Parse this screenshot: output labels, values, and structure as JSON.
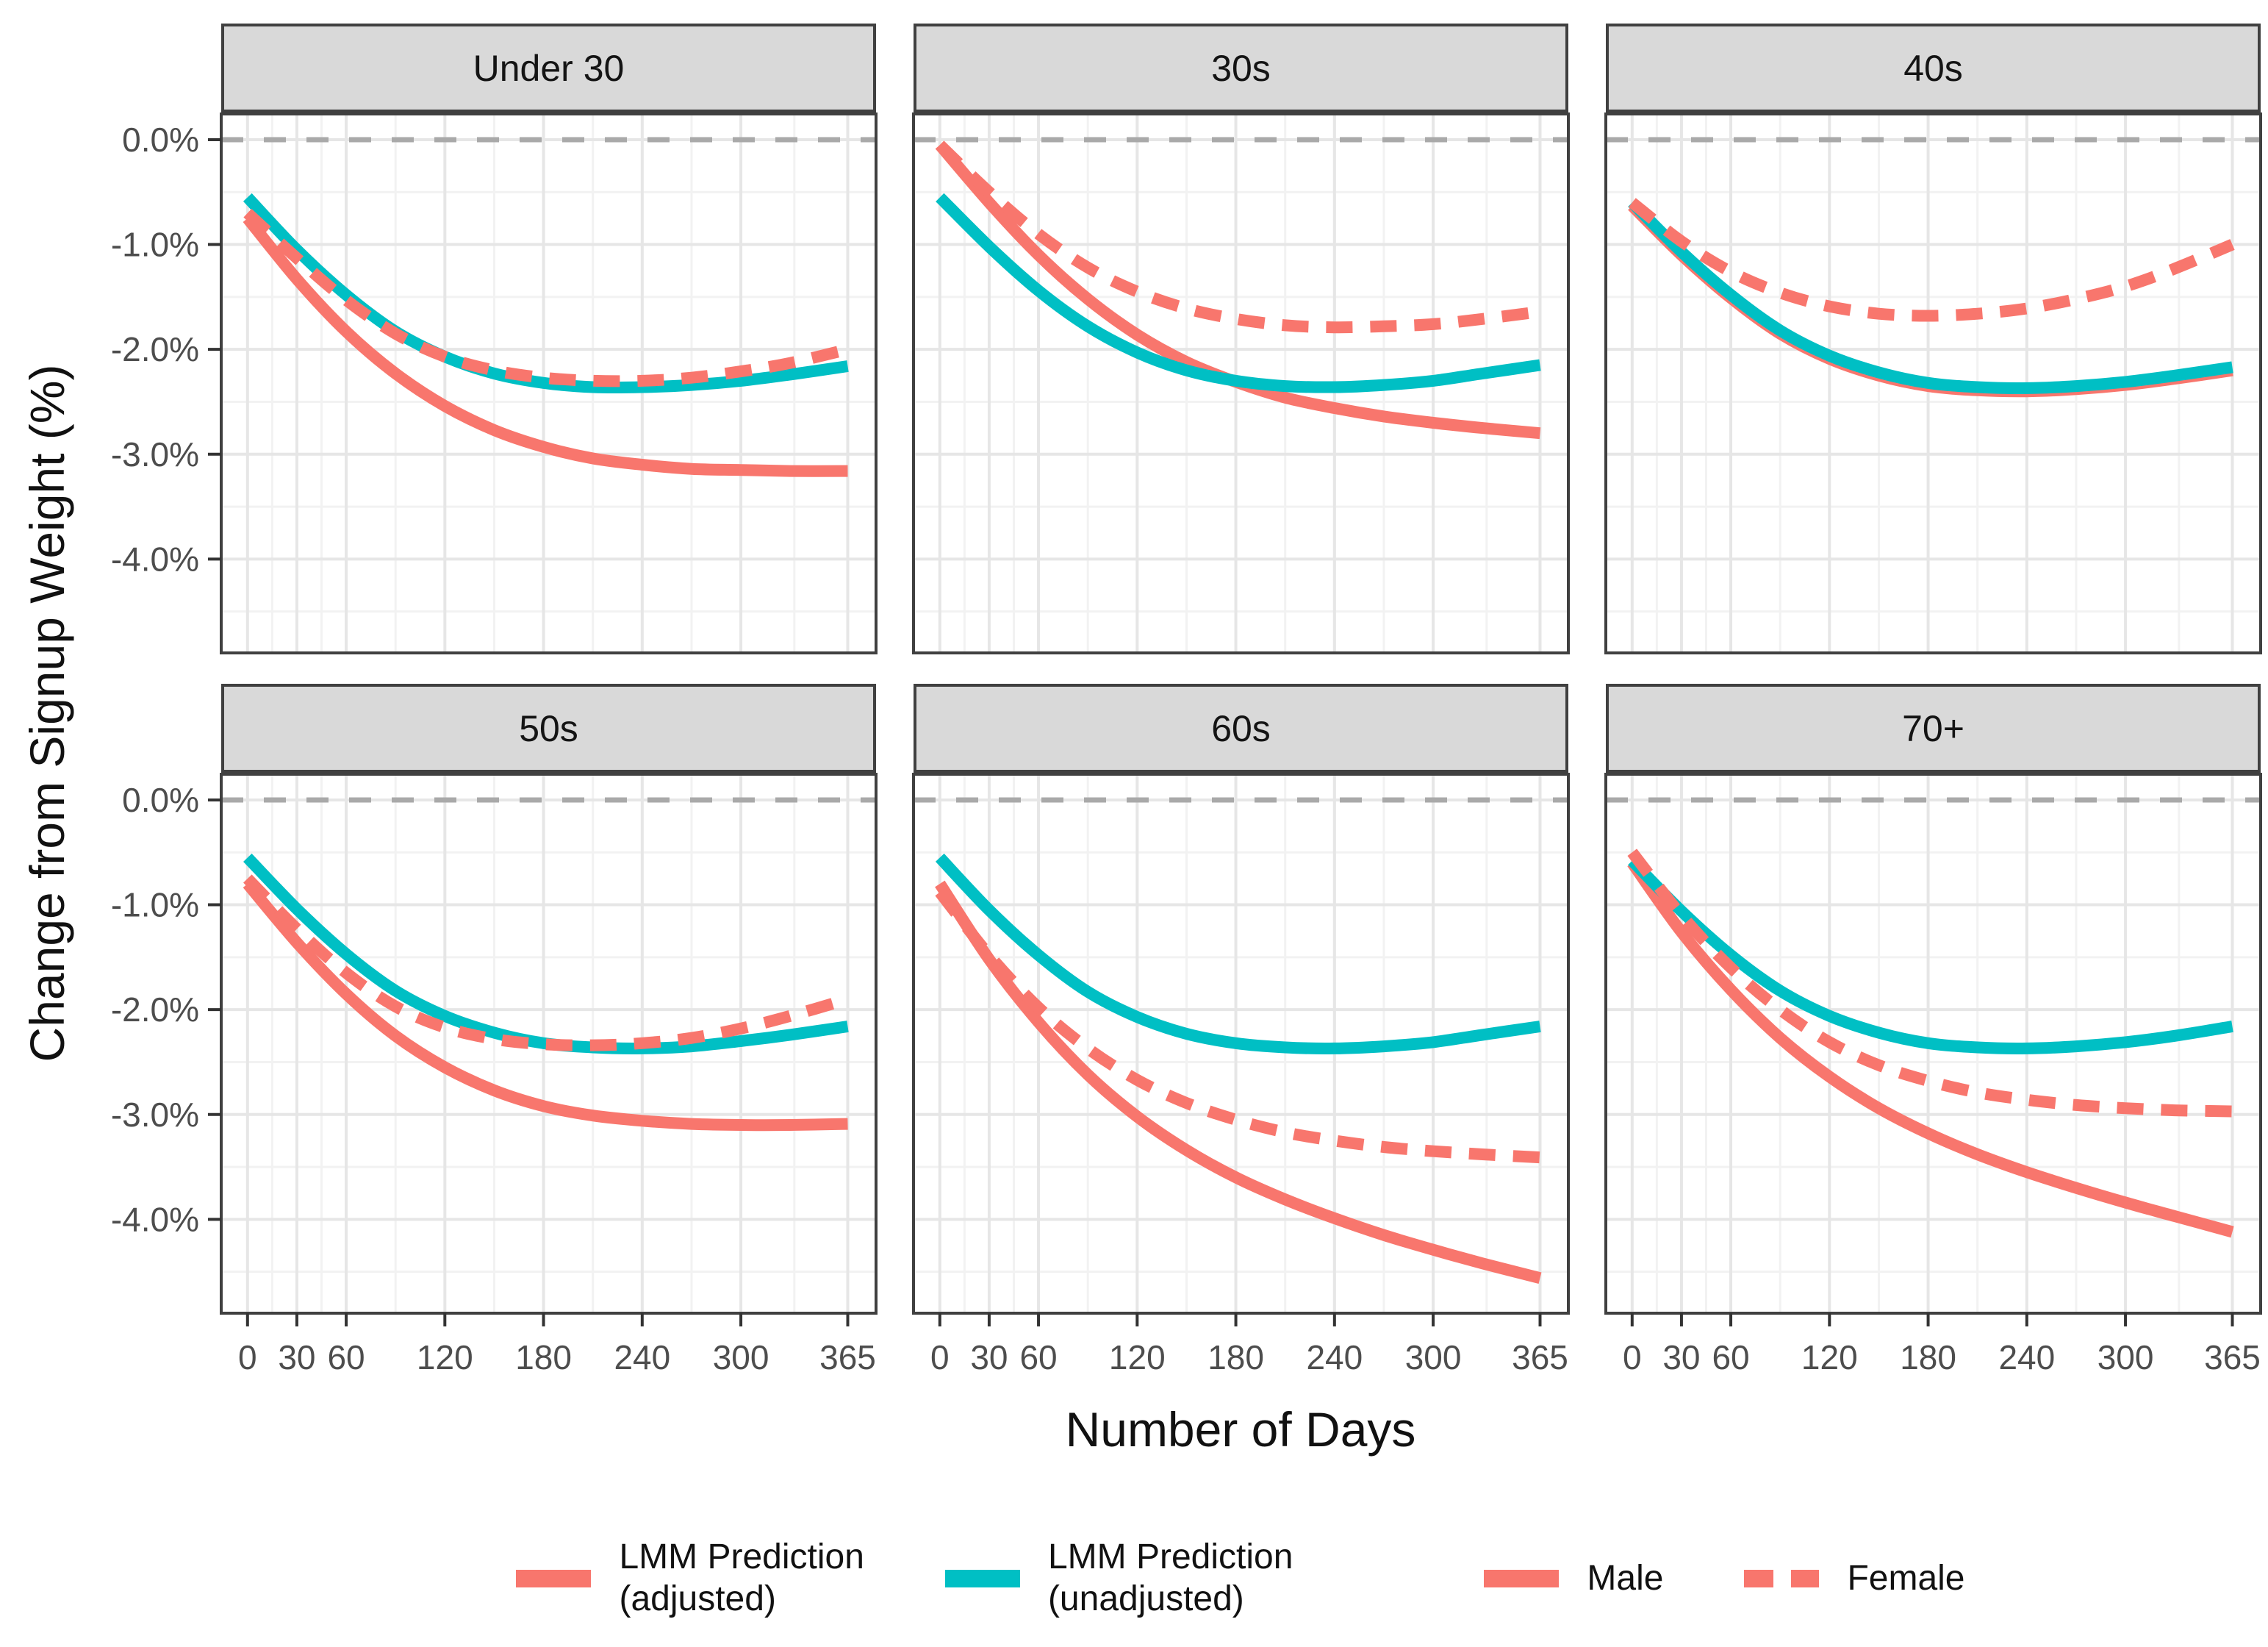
{
  "chart_data": {
    "type": "line",
    "xlabel": "Number of Days",
    "ylabel": "Change from Signup Weight (%)",
    "x_ticks": [
      0,
      30,
      60,
      120,
      180,
      240,
      300,
      365
    ],
    "x_tick_labels": [
      "0",
      "30",
      "60",
      "120",
      "180",
      "240",
      "300",
      "365"
    ],
    "y_ticks": [
      {
        "label": "0.0%",
        "value": 0
      },
      {
        "label": "-1.0%",
        "value": -1
      },
      {
        "label": "-2.0%",
        "value": -2
      },
      {
        "label": "-3.0%",
        "value": -3
      },
      {
        "label": "-4.0%",
        "value": -4
      }
    ],
    "x_minor": [
      15,
      45,
      90,
      150,
      210,
      270,
      332.5
    ],
    "y_minor": [
      -0.5,
      -1.5,
      -2.5,
      -3.5,
      -4.5
    ],
    "xlim": [
      -16,
      382.2
    ],
    "ylim": [
      0.245,
      -4.895
    ],
    "zero_line": {
      "value": 0,
      "style": "dashed",
      "color": "#A9A9A9"
    },
    "x": [
      0,
      30,
      60,
      90,
      120,
      150,
      180,
      210,
      240,
      270,
      300,
      330,
      365
    ],
    "series_meta": [
      {
        "key": "male",
        "name": "Male",
        "color": "#F8766D",
        "dash": false
      },
      {
        "key": "unadjusted",
        "name": "LMM Prediction (unadjusted)",
        "color": "#00BFC4",
        "dash": false
      },
      {
        "key": "female",
        "name": "Female",
        "color": "#F8766D",
        "dash": true
      }
    ],
    "facets": [
      {
        "label": "Under 30",
        "male": [
          -0.75,
          -1.33,
          -1.83,
          -2.23,
          -2.54,
          -2.77,
          -2.93,
          -3.04,
          -3.1,
          -3.14,
          -3.15,
          -3.16,
          -3.16
        ],
        "unadjusted": [
          -0.55,
          -1.05,
          -1.48,
          -1.83,
          -2.07,
          -2.23,
          -2.32,
          -2.36,
          -2.36,
          -2.34,
          -2.3,
          -2.24,
          -2.16
        ],
        "female": [
          -0.7,
          -1.13,
          -1.53,
          -1.85,
          -2.07,
          -2.2,
          -2.27,
          -2.3,
          -2.3,
          -2.27,
          -2.21,
          -2.13,
          -2.0
        ]
      },
      {
        "label": "30s",
        "male": [
          -0.05,
          -0.6,
          -1.1,
          -1.52,
          -1.86,
          -2.12,
          -2.31,
          -2.46,
          -2.56,
          -2.64,
          -2.7,
          -2.75,
          -2.8
        ],
        "unadjusted": [
          -0.55,
          -1.02,
          -1.44,
          -1.78,
          -2.03,
          -2.2,
          -2.3,
          -2.35,
          -2.36,
          -2.34,
          -2.3,
          -2.23,
          -2.15
        ],
        "female": [
          -0.05,
          -0.5,
          -0.9,
          -1.22,
          -1.45,
          -1.61,
          -1.71,
          -1.77,
          -1.79,
          -1.78,
          -1.76,
          -1.71,
          -1.64
        ]
      },
      {
        "label": "40s",
        "male": [
          -0.63,
          -1.1,
          -1.51,
          -1.85,
          -2.09,
          -2.25,
          -2.35,
          -2.39,
          -2.4,
          -2.38,
          -2.34,
          -2.28,
          -2.2
        ],
        "unadjusted": [
          -0.6,
          -1.07,
          -1.48,
          -1.82,
          -2.06,
          -2.22,
          -2.32,
          -2.36,
          -2.37,
          -2.35,
          -2.31,
          -2.25,
          -2.17
        ],
        "female": [
          -0.6,
          -0.97,
          -1.26,
          -1.46,
          -1.59,
          -1.66,
          -1.68,
          -1.66,
          -1.61,
          -1.52,
          -1.4,
          -1.23,
          -1.0
        ]
      },
      {
        "label": "50s",
        "male": [
          -0.8,
          -1.36,
          -1.85,
          -2.25,
          -2.55,
          -2.77,
          -2.92,
          -3.01,
          -3.06,
          -3.09,
          -3.1,
          -3.1,
          -3.09
        ],
        "unadjusted": [
          -0.55,
          -1.04,
          -1.47,
          -1.82,
          -2.06,
          -2.22,
          -2.32,
          -2.36,
          -2.37,
          -2.35,
          -2.3,
          -2.24,
          -2.16
        ],
        "female": [
          -0.75,
          -1.23,
          -1.65,
          -1.97,
          -2.17,
          -2.28,
          -2.33,
          -2.34,
          -2.32,
          -2.27,
          -2.18,
          -2.06,
          -1.9
        ]
      },
      {
        "label": "60s",
        "male": [
          -0.8,
          -1.52,
          -2.12,
          -2.62,
          -3.02,
          -3.34,
          -3.6,
          -3.81,
          -3.99,
          -4.15,
          -4.29,
          -4.42,
          -4.56
        ],
        "unadjusted": [
          -0.55,
          -1.05,
          -1.48,
          -1.83,
          -2.07,
          -2.23,
          -2.32,
          -2.36,
          -2.37,
          -2.35,
          -2.31,
          -2.24,
          -2.16
        ],
        "female": [
          -0.88,
          -1.48,
          -1.98,
          -2.37,
          -2.67,
          -2.89,
          -3.05,
          -3.17,
          -3.25,
          -3.31,
          -3.35,
          -3.38,
          -3.41
        ]
      },
      {
        "label": "70+",
        "male": [
          -0.6,
          -1.26,
          -1.81,
          -2.27,
          -2.64,
          -2.94,
          -3.18,
          -3.38,
          -3.55,
          -3.7,
          -3.84,
          -3.97,
          -4.12
        ],
        "unadjusted": [
          -0.58,
          -1.06,
          -1.48,
          -1.82,
          -2.06,
          -2.22,
          -2.32,
          -2.36,
          -2.37,
          -2.35,
          -2.31,
          -2.25,
          -2.16
        ],
        "female": [
          -0.5,
          -1.1,
          -1.6,
          -2.0,
          -2.31,
          -2.53,
          -2.68,
          -2.79,
          -2.86,
          -2.91,
          -2.94,
          -2.96,
          -2.97
        ]
      }
    ],
    "legend": [
      {
        "label": "LMM Prediction\n(adjusted)",
        "color": "#F8766D",
        "dash": false
      },
      {
        "label": "LMM Prediction\n(unadjusted)",
        "color": "#00BFC4",
        "dash": false
      },
      {
        "label": "Male",
        "color": "#F8766D",
        "dash": false
      },
      {
        "label": "Female",
        "color": "#F8766D",
        "dash": true
      }
    ],
    "colors": {
      "adjusted": "#F8766D",
      "unadjusted": "#00BFC4",
      "zero_line": "#A9A9A9",
      "grid_major": "#E6E6E6",
      "grid_minor": "#F2F2F2",
      "strip_bg": "#D9D9D9",
      "panel_border": "#404040",
      "tick_text": "#4D4D4D"
    },
    "legend_position": "bottom",
    "grid": "on"
  }
}
